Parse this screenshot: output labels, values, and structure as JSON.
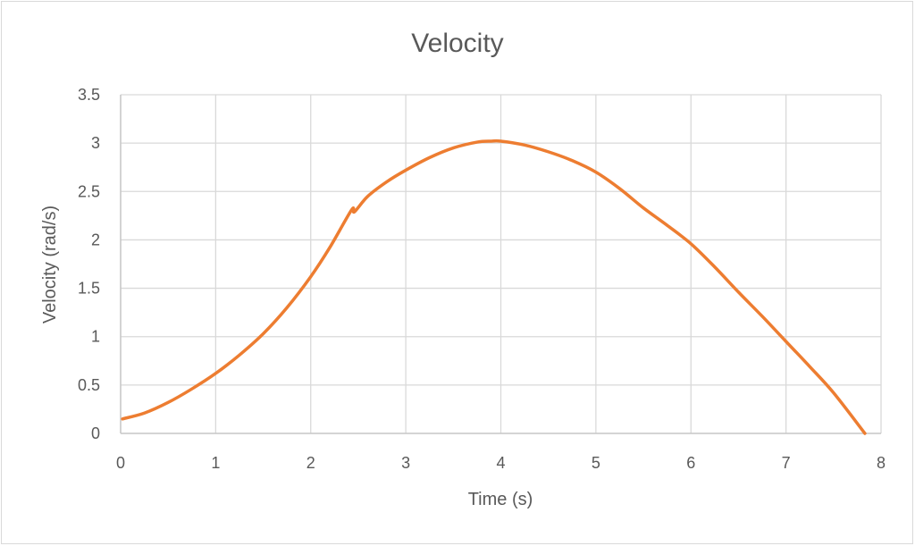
{
  "chart_data": {
    "type": "line",
    "title": "Velocity",
    "xlabel": "Time (s)",
    "ylabel": "Velocity (rad/s)",
    "xlim": [
      0,
      8
    ],
    "ylim": [
      0,
      3.5
    ],
    "x_ticks": [
      "0",
      "1",
      "2",
      "3",
      "4",
      "5",
      "6",
      "7",
      "8"
    ],
    "y_ticks": [
      "0",
      "0.5",
      "1",
      "1.5",
      "2",
      "2.5",
      "3",
      "3.5"
    ],
    "x_tick_values": [
      0,
      1,
      2,
      3,
      4,
      5,
      6,
      7,
      8
    ],
    "y_tick_values": [
      0,
      0.5,
      1,
      1.5,
      2,
      2.5,
      3,
      3.5
    ],
    "grid": true,
    "legend": "none",
    "series": [
      {
        "name": "Velocity",
        "color": "#ED7D31",
        "x": [
          0.02,
          0.25,
          0.5,
          0.75,
          1.0,
          1.25,
          1.5,
          1.75,
          2.0,
          2.2,
          2.43,
          2.46,
          2.6,
          2.8,
          3.0,
          3.25,
          3.5,
          3.75,
          3.9,
          4.0,
          4.25,
          4.5,
          4.75,
          5.0,
          5.25,
          5.5,
          5.75,
          6.0,
          6.25,
          6.5,
          6.75,
          7.0,
          7.25,
          7.5,
          7.83
        ],
        "y": [
          0.15,
          0.21,
          0.32,
          0.46,
          0.62,
          0.81,
          1.03,
          1.3,
          1.62,
          1.92,
          2.31,
          2.29,
          2.45,
          2.6,
          2.72,
          2.85,
          2.95,
          3.01,
          3.02,
          3.02,
          2.98,
          2.91,
          2.82,
          2.7,
          2.53,
          2.33,
          2.15,
          1.96,
          1.72,
          1.46,
          1.21,
          0.95,
          0.69,
          0.42,
          0.0
        ]
      }
    ]
  }
}
